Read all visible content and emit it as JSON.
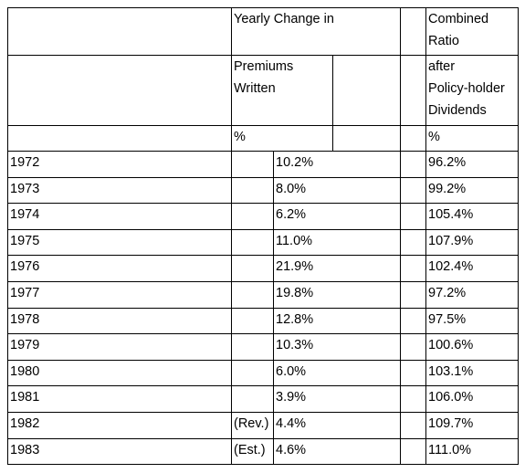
{
  "header": {
    "group_label": "Yearly Change in",
    "ratio_label": "Combined Ratio",
    "premiums_label": [
      "Premiums",
      "Written"
    ],
    "ratio_sublabel": [
      "after",
      "Policy-holder",
      "Dividends"
    ],
    "premiums_unit": "%",
    "ratio_unit": "%"
  },
  "rows": [
    {
      "year": "1972",
      "note": "",
      "premiums_change": "10.2%",
      "combined_ratio": "96.2%"
    },
    {
      "year": "1973",
      "note": "",
      "premiums_change": "8.0%",
      "combined_ratio": "99.2%"
    },
    {
      "year": "1974",
      "note": "",
      "premiums_change": "6.2%",
      "combined_ratio": "105.4%"
    },
    {
      "year": "1975",
      "note": "",
      "premiums_change": "11.0%",
      "combined_ratio": "107.9%"
    },
    {
      "year": "1976",
      "note": "",
      "premiums_change": "21.9%",
      "combined_ratio": "102.4%"
    },
    {
      "year": "1977",
      "note": "",
      "premiums_change": "19.8%",
      "combined_ratio": "97.2%"
    },
    {
      "year": "1978",
      "note": "",
      "premiums_change": "12.8%",
      "combined_ratio": "97.5%"
    },
    {
      "year": "1979",
      "note": "",
      "premiums_change": "10.3%",
      "combined_ratio": "100.6%"
    },
    {
      "year": "1980",
      "note": "",
      "premiums_change": "6.0%",
      "combined_ratio": "103.1%"
    },
    {
      "year": "1981",
      "note": "",
      "premiums_change": "3.9%",
      "combined_ratio": "106.0%"
    },
    {
      "year": "1982",
      "note": "(Rev.)",
      "premiums_change": "4.4%",
      "combined_ratio": "109.7%"
    },
    {
      "year": "1983",
      "note": "(Est.)",
      "premiums_change": "4.6%",
      "combined_ratio": "111.0%"
    }
  ]
}
